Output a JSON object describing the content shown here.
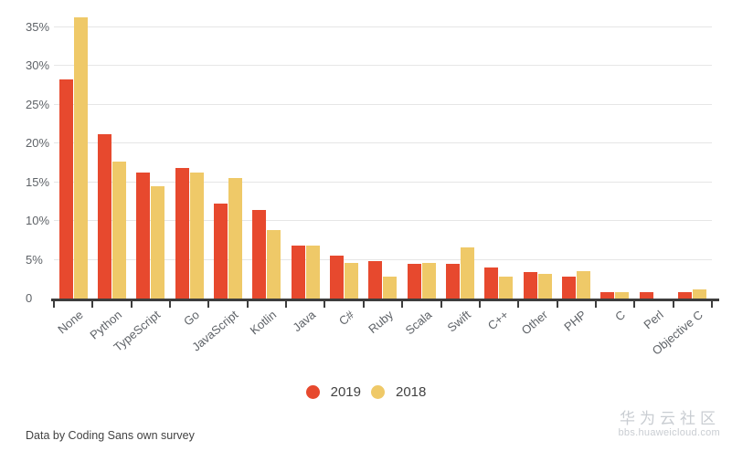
{
  "chart_data": {
    "type": "bar",
    "title": "",
    "categories": [
      "None",
      "Python",
      "TypeScript",
      "Go",
      "JavaScript",
      "Kotlin",
      "Java",
      "C#",
      "Ruby",
      "Scala",
      "Swift",
      "C++",
      "Other",
      "PHP",
      "C",
      "Perl",
      "Objective C"
    ],
    "series": [
      {
        "name": "2019",
        "color": "#e7492e",
        "values": [
          28.4,
          21.3,
          16.4,
          17.0,
          12.4,
          11.5,
          6.9,
          5.6,
          5.0,
          4.6,
          4.6,
          4.1,
          3.5,
          2.9,
          0.9,
          0.9,
          0.9
        ]
      },
      {
        "name": "2018",
        "color": "#efc968",
        "values": [
          36.3,
          17.8,
          14.6,
          16.4,
          15.7,
          9.0,
          7.0,
          4.7,
          3.0,
          4.7,
          6.7,
          2.9,
          3.3,
          3.7,
          1.0,
          0,
          1.3
        ]
      }
    ],
    "xlabel": "",
    "ylabel": "",
    "ylim": [
      0,
      35
    ],
    "y_ticks": [
      {
        "value": 0,
        "label": "0"
      },
      {
        "value": 5,
        "label": "5%"
      },
      {
        "value": 10,
        "label": "10%"
      },
      {
        "value": 15,
        "label": "15%"
      },
      {
        "value": 20,
        "label": "20%"
      },
      {
        "value": 25,
        "label": "25%"
      },
      {
        "value": 30,
        "label": "30%"
      },
      {
        "value": 35,
        "label": "35%"
      }
    ],
    "grid": true,
    "legend_position": "bottom-center",
    "x_label_rotation_deg": -40
  },
  "legend": {
    "items": [
      {
        "label": "2019",
        "color": "#e7492e"
      },
      {
        "label": "2018",
        "color": "#efc968"
      }
    ]
  },
  "footer": {
    "source_note": "Data by Coding Sans own survey"
  },
  "watermark": {
    "title": "华为云社区",
    "subtitle": "bbs.huaweicloud.com"
  },
  "colors": {
    "series_2019": "#e7492e",
    "series_2018": "#efc968",
    "gridline": "#e6e6e6",
    "axis": "#3d3d3d",
    "tick_text": "#5f6368",
    "watermark": "#c9cdd2",
    "background": "#ffffff"
  }
}
